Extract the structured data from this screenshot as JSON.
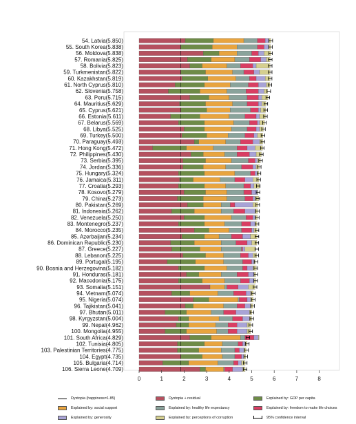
{
  "chart_data": {
    "type": "bar",
    "stacked": true,
    "orientation": "horizontal",
    "categories": [
      "54. Latvia(5.850)",
      "55. South Korea(5.838)",
      "56. Moldova(5.838)",
      "57. Romania(5.825)",
      "58. Bolivia(5.823)",
      "59. Turkmenistan(5.822)",
      "60. Kazakhstan(5.819)",
      "61. North Cyprus(5.810)",
      "62. Slovenia(5.758)",
      "63. Peru(5.715)",
      "64. Mauritius(5.629)",
      "65. Cyprus(5.621)",
      "66. Estonia(5.611)",
      "67. Belarus(5.569)",
      "68. Libya(5.525)",
      "69. Turkey(5.500)",
      "70. Paraguay(5.493)",
      "71. Hong Kong(5.472)",
      "72. Philippines(5.430)",
      "73. Serbia(5.395)",
      "74. Jordan(5.336)",
      "75. Hungary(5.324)",
      "76. Jamaica(5.311)",
      "77. Croatia(5.293)",
      "78. Kosovo(5.279)",
      "79. China(5.273)",
      "80. Pakistan(5.269)",
      "81. Indonesia(5.262)",
      "82. Venezuela(5.250)",
      "83. Montenegro(5.237)",
      "84. Morocco(5.235)",
      "85. Azerbaijan(5.234)",
      "86. Dominican Republic(5.230)",
      "87. Greece(5.227)",
      "88. Lebanon(5.225)",
      "89. Portugal(5.195)",
      "90. Bosnia and Herzegovina(5.182)",
      "91. Honduras(5.181)",
      "92. Macedonia(5.175)",
      "93. Somalia(5.151)",
      "94. Vietnam(5.074)",
      "95. Nigeria(5.074)",
      "96. Tajikistan(5.041)",
      "97. Bhutan(5.011)",
      "98. Kyrgyzstan(5.004)",
      "99. Nepal(4.962)",
      "100. Mongolia(4.955)",
      "101. South Africa(4.829)",
      "102. Tunisia(4.805)",
      "103. Palestinian Territories(4.775)",
      "104. Egypt(4.735)",
      "105. Bulgaria(4.714)",
      "106. Sierra Leone(4.709)"
    ],
    "happiness": [
      5.85,
      5.838,
      5.838,
      5.825,
      5.823,
      5.822,
      5.819,
      5.81,
      5.758,
      5.715,
      5.629,
      5.621,
      5.611,
      5.569,
      5.525,
      5.5,
      5.493,
      5.472,
      5.43,
      5.395,
      5.336,
      5.324,
      5.311,
      5.293,
      5.279,
      5.273,
      5.269,
      5.262,
      5.25,
      5.237,
      5.235,
      5.234,
      5.23,
      5.227,
      5.225,
      5.195,
      5.182,
      5.181,
      5.175,
      5.151,
      5.074,
      5.074,
      5.041,
      5.011,
      5.004,
      4.962,
      4.955,
      4.829,
      4.805,
      4.775,
      4.735,
      4.714,
      4.709
    ],
    "dystopia_value": 1.85,
    "series": [
      {
        "name": "Dystopia + residual",
        "color": "#b5515f",
        "values": [
          2.05,
          1.85,
          2.85,
          2.15,
          2.25,
          1.85,
          1.9,
          1.6,
          1.3,
          2.25,
          1.8,
          1.85,
          1.4,
          1.75,
          2.0,
          1.9,
          2.45,
          0.6,
          2.3,
          1.95,
          1.95,
          1.75,
          1.8,
          1.75,
          2.0,
          1.7,
          2.15,
          1.45,
          2.0,
          1.75,
          2.45,
          1.9,
          1.4,
          1.45,
          1.95,
          1.25,
          1.75,
          2.1,
          1.75,
          3.15,
          1.45,
          2.4,
          2.05,
          1.15,
          1.75,
          1.65,
          1.15,
          2.25,
          1.7,
          1.7,
          1.85,
          1.05,
          2.7
        ]
      },
      {
        "name": "Explained by: GDP per capita",
        "color": "#6e8b47",
        "values": [
          1.25,
          1.4,
          0.7,
          1.05,
          0.55,
          1.1,
          1.15,
          1.3,
          1.4,
          0.85,
          1.15,
          1.15,
          1.3,
          1.15,
          0.9,
          1.1,
          0.2,
          1.5,
          0.55,
          1.0,
          0.9,
          1.15,
          0.6,
          1.15,
          0.95,
          1.15,
          0.7,
          1.0,
          0.9,
          1.15,
          0.65,
          1.0,
          1.05,
          1.25,
          1.0,
          1.25,
          1.15,
          0.55,
          1.05,
          0.0,
          0.8,
          0.7,
          0.35,
          0.95,
          0.45,
          0.55,
          0.95,
          0.95,
          1.2,
          0.95,
          0.95,
          1.15,
          0.25
        ]
      },
      {
        "name": "Explained by: social support",
        "color": "#e8a43f",
        "values": [
          1.35,
          1.1,
          0.8,
          1.05,
          1.1,
          1.2,
          1.25,
          1.15,
          1.2,
          0.9,
          1.2,
          1.05,
          1.3,
          1.3,
          1.2,
          0.95,
          1.2,
          1.2,
          0.95,
          1.15,
          1.0,
          1.35,
          1.2,
          0.95,
          0.95,
          1.05,
          0.8,
          1.2,
          1.2,
          0.9,
          0.9,
          0.65,
          1.2,
          0.95,
          0.8,
          1.25,
          1.0,
          1.0,
          1.0,
          0.65,
          1.25,
          1.3,
          1.35,
          1.1,
          1.35,
          1.2,
          1.35,
          1.3,
          0.8,
          1.0,
          0.9,
          1.3,
          0.8
        ]
      },
      {
        "name": "Explained by: healthy life expectancy",
        "color": "#8aa39b",
        "values": [
          0.6,
          0.9,
          0.65,
          0.65,
          0.6,
          0.5,
          0.6,
          0.8,
          0.85,
          0.8,
          0.65,
          0.9,
          0.7,
          0.7,
          0.7,
          0.75,
          0.65,
          1.05,
          0.55,
          0.75,
          0.7,
          0.7,
          0.65,
          0.8,
          0.75,
          0.8,
          0.4,
          0.55,
          0.65,
          0.75,
          0.55,
          0.55,
          0.65,
          0.9,
          0.75,
          0.85,
          0.7,
          0.7,
          0.7,
          0.1,
          0.7,
          0.05,
          0.6,
          0.55,
          0.6,
          0.55,
          0.5,
          0.2,
          0.7,
          0.6,
          0.55,
          0.7,
          0.05
        ]
      },
      {
        "name": "Explained by: freedom to make life choices",
        "color": "#d93e63",
        "values": [
          0.35,
          0.3,
          0.3,
          0.5,
          0.55,
          0.45,
          0.3,
          0.45,
          0.55,
          0.5,
          0.5,
          0.35,
          0.5,
          0.35,
          0.4,
          0.4,
          0.55,
          0.45,
          0.55,
          0.3,
          0.5,
          0.2,
          0.45,
          0.3,
          0.35,
          0.35,
          0.2,
          0.5,
          0.3,
          0.4,
          0.45,
          0.5,
          0.5,
          0.05,
          0.35,
          0.4,
          0.2,
          0.5,
          0.4,
          0.5,
          0.55,
          0.35,
          0.35,
          0.55,
          0.45,
          0.4,
          0.4,
          0.4,
          0.2,
          0.2,
          0.3,
          0.2,
          0.35
        ]
      },
      {
        "name": "Explained by: generosity",
        "color": "#a8a3d6",
        "values": [
          0.15,
          0.2,
          0.25,
          0.25,
          0.15,
          0.25,
          0.4,
          0.35,
          0.25,
          0.15,
          0.15,
          0.1,
          0.15,
          0.1,
          0.15,
          0.15,
          0.3,
          0.35,
          0.3,
          0.1,
          0.15,
          0.1,
          0.35,
          0.15,
          0.25,
          0.1,
          0.8,
          0.45,
          0.1,
          0.2,
          0.1,
          0.35,
          0.2,
          0.1,
          0.2,
          0.1,
          0.25,
          0.25,
          0.2,
          0.45,
          0.2,
          0.15,
          0.25,
          0.6,
          0.3,
          0.45,
          0.45,
          0.2,
          0.1,
          0.2,
          0.1,
          0.15,
          0.45
        ]
      },
      {
        "name": "Explained by: perceptions of corruption",
        "color": "#d5cf8f",
        "values": [
          0.1,
          0.09,
          0.3,
          0.17,
          0.62,
          0.47,
          0.22,
          0.16,
          0.16,
          0.27,
          0.18,
          0.22,
          0.26,
          0.22,
          0.17,
          0.25,
          0.14,
          0.33,
          0.23,
          0.14,
          0.14,
          0.07,
          0.27,
          0.24,
          0.03,
          0.16,
          0.22,
          0.11,
          0.1,
          0.09,
          0.14,
          0.29,
          0.23,
          0.48,
          0.17,
          0.06,
          0.16,
          0.08,
          0.08,
          0.3,
          0.12,
          0.12,
          0.1,
          0.11,
          0.1,
          0.16,
          0.15,
          0.03,
          0.1,
          0.1,
          0.08,
          0.16,
          0.11
        ]
      }
    ],
    "xlim": [
      0,
      8
    ],
    "xticks": [
      "0",
      "1",
      "2",
      "3",
      "4",
      "5",
      "6",
      "7",
      "8"
    ],
    "legend": {
      "position": "bottom",
      "items": [
        {
          "kind": "line",
          "label": "Dystopia (happiness=1.85)"
        },
        {
          "kind": "swatch",
          "color": "#b5515f",
          "label": "Dystopia + residual"
        },
        {
          "kind": "swatch",
          "color": "#6e8b47",
          "label": "Explained by: GDP per capita"
        },
        {
          "kind": "swatch",
          "color": "#e8a43f",
          "label": "Explained by: social support"
        },
        {
          "kind": "swatch",
          "color": "#8aa39b",
          "label": "Explained by: healthy life expectancy"
        },
        {
          "kind": "swatch",
          "color": "#d93e63",
          "label": "Explained by: freedom to make life choices"
        },
        {
          "kind": "swatch",
          "color": "#a8a3d6",
          "label": "Explained by: generosity"
        },
        {
          "kind": "swatch",
          "color": "#d5cf8f",
          "label": "Explained by: perceptions of corruption"
        },
        {
          "kind": "ci",
          "label": "95% confidence interval"
        }
      ]
    }
  }
}
